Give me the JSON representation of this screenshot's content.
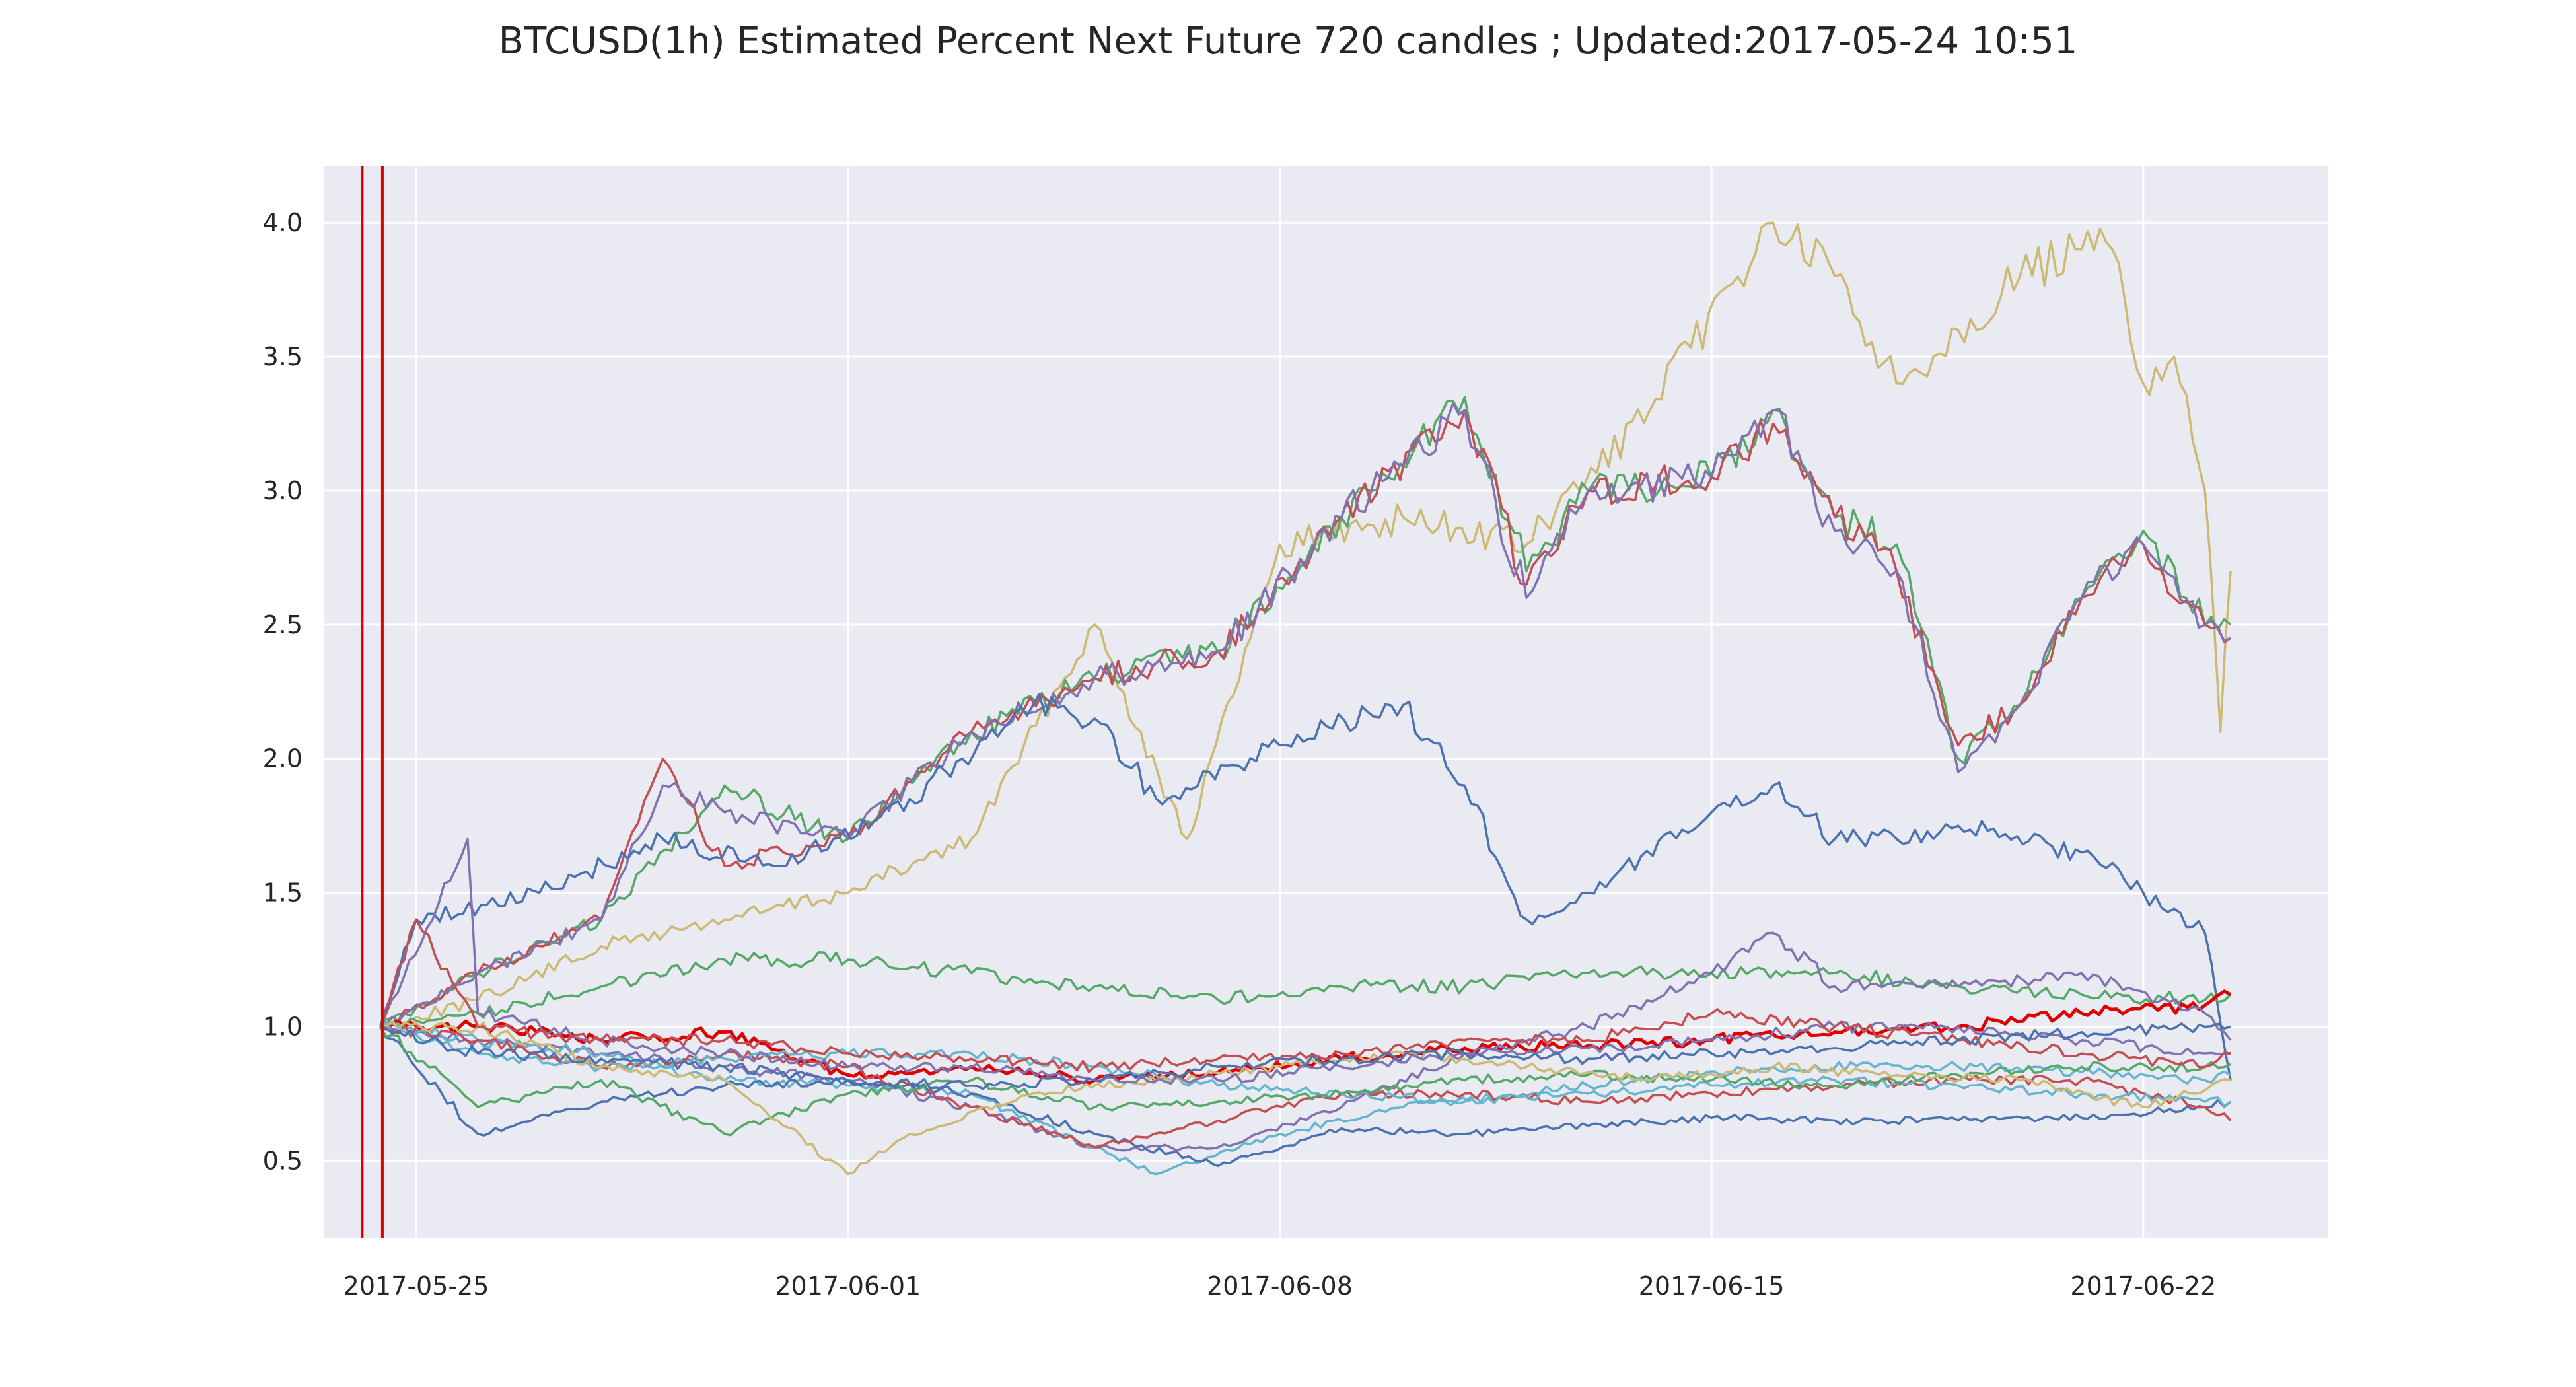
{
  "chart_data": {
    "type": "line",
    "title": "BTCUSD(1h) Estimated Percent Next Future 720 candles ; Updated:2017-05-24 10:51",
    "xlabel": "",
    "ylabel": "",
    "x_range": [
      "2017-05-23 12:00",
      "2017-06-25 00:00"
    ],
    "ylim": [
      0.21,
      4.21
    ],
    "x_ticks": [
      "2017-05-25",
      "2017-06-01",
      "2017-06-08",
      "2017-06-15",
      "2017-06-22"
    ],
    "y_ticks": [
      0.5,
      1.0,
      1.5,
      2.0,
      2.5,
      3.0,
      3.5,
      4.0
    ],
    "grid": true,
    "legend": "none",
    "background": "#eaeaf2",
    "vertical_markers": [
      {
        "x": "2017-05-24 03:00",
        "color": "#e00000"
      },
      {
        "x": "2017-05-24 10:51",
        "color": "#e00000"
      }
    ],
    "series": [
      {
        "color": "#ccb974",
        "x": [
          "2017-05-24 10:00",
          "2017-05-26",
          "2017-05-28",
          "2017-05-30",
          "2017-06-01",
          "2017-06-03",
          "2017-06-05",
          "2017-06-06 12:00",
          "2017-06-08",
          "2017-06-10",
          "2017-06-12",
          "2017-06-14",
          "2017-06-16",
          "2017-06-17",
          "2017-06-18",
          "2017-06-19",
          "2017-06-20",
          "2017-06-21",
          "2017-06-21 12:00",
          "2017-06-22",
          "2017-06-22 12:00",
          "2017-06-23",
          "2017-06-23 06:00",
          "2017-06-23 10:00"
        ],
        "values": [
          1.0,
          1.1,
          1.3,
          1.4,
          1.5,
          1.7,
          2.5,
          1.7,
          2.8,
          2.9,
          2.8,
          3.3,
          4.0,
          3.8,
          3.4,
          3.6,
          3.8,
          3.9,
          3.9,
          3.4,
          3.5,
          3.0,
          2.1,
          2.7
        ]
      },
      {
        "color": "#55a868",
        "x": [
          "2017-05-24 10:00",
          "2017-05-26",
          "2017-05-28",
          "2017-05-30",
          "2017-06-01",
          "2017-06-03",
          "2017-06-05",
          "2017-06-07",
          "2017-06-09",
          "2017-06-11",
          "2017-06-12",
          "2017-06-13",
          "2017-06-15",
          "2017-06-16",
          "2017-06-17",
          "2017-06-18",
          "2017-06-19",
          "2017-06-20",
          "2017-06-21",
          "2017-06-22",
          "2017-06-23",
          "2017-06-23 10:00"
        ],
        "values": [
          1.0,
          1.2,
          1.4,
          1.9,
          1.7,
          2.1,
          2.3,
          2.4,
          2.9,
          3.35,
          2.7,
          3.0,
          3.05,
          3.3,
          2.9,
          2.8,
          2.0,
          2.2,
          2.6,
          2.85,
          2.5,
          2.5
        ]
      },
      {
        "color": "#c44e52",
        "x": [
          "2017-05-24 10:00",
          "2017-05-26",
          "2017-05-28",
          "2017-05-29",
          "2017-05-30",
          "2017-06-01",
          "2017-06-03",
          "2017-06-05",
          "2017-06-07",
          "2017-06-09",
          "2017-06-11",
          "2017-06-12",
          "2017-06-13",
          "2017-06-15",
          "2017-06-16",
          "2017-06-17",
          "2017-06-18",
          "2017-06-19",
          "2017-06-20",
          "2017-06-21",
          "2017-06-22",
          "2017-06-23",
          "2017-06-23 10:00"
        ],
        "values": [
          1.0,
          1.2,
          1.4,
          2.0,
          1.6,
          1.7,
          2.1,
          2.3,
          2.4,
          2.9,
          3.3,
          2.65,
          3.0,
          3.05,
          3.25,
          2.9,
          2.7,
          2.05,
          2.2,
          2.6,
          2.8,
          2.5,
          2.45
        ]
      },
      {
        "color": "#8172b2",
        "x": [
          "2017-05-24 10:00",
          "2017-05-26",
          "2017-05-28",
          "2017-05-29",
          "2017-05-30",
          "2017-06-01",
          "2017-06-03",
          "2017-06-05",
          "2017-06-07",
          "2017-06-09",
          "2017-06-11",
          "2017-06-12",
          "2017-06-13",
          "2017-06-15",
          "2017-06-16",
          "2017-06-17",
          "2017-06-18",
          "2017-06-19",
          "2017-06-20",
          "2017-06-21",
          "2017-06-22",
          "2017-06-23",
          "2017-06-23 10:00"
        ],
        "values": [
          1.0,
          1.2,
          1.4,
          1.9,
          1.8,
          1.7,
          2.1,
          2.3,
          2.4,
          2.9,
          3.3,
          2.6,
          3.0,
          3.05,
          3.3,
          2.85,
          2.7,
          1.95,
          2.2,
          2.6,
          2.8,
          2.5,
          2.45
        ]
      },
      {
        "color": "#4c72b0",
        "x": [
          "2017-05-24 10:00",
          "2017-05-25",
          "2017-05-27",
          "2017-05-29",
          "2017-05-31",
          "2017-06-02",
          "2017-06-04",
          "2017-06-05",
          "2017-06-06",
          "2017-06-08",
          "2017-06-10",
          "2017-06-11",
          "2017-06-12",
          "2017-06-13",
          "2017-06-15",
          "2017-06-16",
          "2017-06-17",
          "2017-06-18",
          "2017-06-19",
          "2017-06-21",
          "2017-06-22",
          "2017-06-23",
          "2017-06-23 10:00"
        ],
        "values": [
          1.0,
          1.4,
          1.5,
          1.7,
          1.6,
          1.85,
          2.2,
          2.15,
          1.85,
          2.05,
          2.2,
          1.9,
          1.4,
          1.5,
          1.8,
          1.9,
          1.7,
          1.7,
          1.75,
          1.65,
          1.5,
          1.35,
          0.8
        ]
      },
      {
        "color": "#55a868",
        "x": [
          "2017-05-24 10:00",
          "2017-05-26",
          "2017-05-28",
          "2017-05-30",
          "2017-06-01",
          "2017-06-03",
          "2017-06-05",
          "2017-06-07",
          "2017-06-09",
          "2017-06-11",
          "2017-06-13",
          "2017-06-15",
          "2017-06-17",
          "2017-06-19",
          "2017-06-21",
          "2017-06-23",
          "2017-06-23 10:00"
        ],
        "values": [
          1.0,
          1.05,
          1.15,
          1.25,
          1.25,
          1.2,
          1.15,
          1.1,
          1.15,
          1.15,
          1.2,
          1.2,
          1.2,
          1.15,
          1.12,
          1.1,
          1.12
        ]
      },
      {
        "color": "#e00000",
        "x": [
          "2017-05-24 10:00",
          "2017-05-26",
          "2017-05-28",
          "2017-05-30",
          "2017-06-01",
          "2017-06-03",
          "2017-06-05",
          "2017-06-07",
          "2017-06-09",
          "2017-06-11",
          "2017-06-13",
          "2017-06-15",
          "2017-06-17",
          "2017-06-19",
          "2017-06-21",
          "2017-06-23",
          "2017-06-23 10:00"
        ],
        "values": [
          1.0,
          1.0,
          0.95,
          0.98,
          0.82,
          0.85,
          0.8,
          0.83,
          0.88,
          0.92,
          0.93,
          0.95,
          0.98,
          1.0,
          1.05,
          1.08,
          1.12
        ]
      },
      {
        "color": "#8172b2",
        "x": [
          "2017-05-24 10:00",
          "2017-05-26",
          "2017-05-28",
          "2017-05-30",
          "2017-06-01",
          "2017-06-03",
          "2017-06-05",
          "2017-06-07",
          "2017-06-09",
          "2017-06-11",
          "2017-06-13",
          "2017-06-15",
          "2017-06-16",
          "2017-06-17",
          "2017-06-19",
          "2017-06-21",
          "2017-06-23",
          "2017-06-23 10:00"
        ],
        "values": [
          1.0,
          0.95,
          0.9,
          0.85,
          0.8,
          0.7,
          0.55,
          0.55,
          0.7,
          0.9,
          1.0,
          1.2,
          1.35,
          1.15,
          1.15,
          1.2,
          1.05,
          0.95
        ]
      },
      {
        "color": "#64b5cd",
        "x": [
          "2017-05-24 10:00",
          "2017-05-26",
          "2017-05-28",
          "2017-05-30",
          "2017-06-01",
          "2017-06-03",
          "2017-06-05",
          "2017-06-06",
          "2017-06-08",
          "2017-06-10",
          "2017-06-13",
          "2017-06-16",
          "2017-06-19",
          "2017-06-21",
          "2017-06-23",
          "2017-06-23 10:00"
        ],
        "values": [
          1.0,
          0.95,
          0.9,
          0.8,
          0.78,
          0.75,
          0.55,
          0.45,
          0.6,
          0.7,
          0.78,
          0.85,
          0.85,
          0.83,
          0.8,
          0.82
        ]
      },
      {
        "color": "#4c72b0",
        "x": [
          "2017-05-24 10:00",
          "2017-05-26",
          "2017-05-28",
          "2017-05-30",
          "2017-06-01",
          "2017-06-03",
          "2017-06-05",
          "2017-06-07",
          "2017-06-09",
          "2017-06-11",
          "2017-06-13",
          "2017-06-15",
          "2017-06-17",
          "2017-06-19",
          "2017-06-21",
          "2017-06-23",
          "2017-06-23 10:00"
        ],
        "values": [
          1.0,
          0.6,
          0.72,
          0.78,
          0.8,
          0.75,
          0.6,
          0.48,
          0.62,
          0.6,
          0.63,
          0.66,
          0.65,
          0.65,
          0.66,
          0.7,
          0.72
        ]
      },
      {
        "color": "#c44e52",
        "x": [
          "2017-05-24 10:00",
          "2017-05-26",
          "2017-05-28",
          "2017-05-30",
          "2017-06-01",
          "2017-06-03",
          "2017-06-05",
          "2017-06-07",
          "2017-06-09",
          "2017-06-11",
          "2017-06-13",
          "2017-06-15",
          "2017-06-17",
          "2017-06-19",
          "2017-06-21",
          "2017-06-23",
          "2017-06-23 10:00"
        ],
        "values": [
          1.0,
          0.95,
          0.85,
          0.9,
          0.85,
          0.7,
          0.55,
          0.65,
          0.75,
          0.75,
          0.72,
          0.75,
          0.78,
          0.8,
          0.8,
          0.7,
          0.65
        ]
      },
      {
        "color": "#64b5cd",
        "x": [
          "2017-05-24 10:00",
          "2017-05-26",
          "2017-05-28",
          "2017-05-30",
          "2017-06-01",
          "2017-06-03",
          "2017-06-05",
          "2017-06-07",
          "2017-06-09",
          "2017-06-11",
          "2017-06-13",
          "2017-06-15",
          "2017-06-17",
          "2017-06-19",
          "2017-06-21",
          "2017-06-23",
          "2017-06-23 10:00"
        ],
        "values": [
          1.0,
          0.9,
          0.85,
          0.88,
          0.9,
          0.9,
          0.85,
          0.78,
          0.75,
          0.72,
          0.75,
          0.78,
          0.8,
          0.78,
          0.75,
          0.72,
          0.72
        ]
      },
      {
        "color": "#55a868",
        "x": [
          "2017-05-24 10:00",
          "2017-05-26",
          "2017-05-28",
          "2017-05-30",
          "2017-06-01",
          "2017-06-03",
          "2017-06-05",
          "2017-06-07",
          "2017-06-09",
          "2017-06-11",
          "2017-06-13",
          "2017-06-15",
          "2017-06-17",
          "2017-06-19",
          "2017-06-21",
          "2017-06-23",
          "2017-06-23 10:00"
        ],
        "values": [
          1.0,
          0.7,
          0.8,
          0.6,
          0.75,
          0.8,
          0.7,
          0.72,
          0.75,
          0.8,
          0.82,
          0.8,
          0.78,
          0.82,
          0.85,
          0.85,
          0.86
        ]
      },
      {
        "color": "#ccb974",
        "x": [
          "2017-05-24 10:00",
          "2017-05-26",
          "2017-05-28",
          "2017-05-30",
          "2017-06-01",
          "2017-06-02",
          "2017-06-04",
          "2017-06-06",
          "2017-06-08",
          "2017-06-10",
          "2017-06-12",
          "2017-06-14",
          "2017-06-16",
          "2017-06-18",
          "2017-06-20",
          "2017-06-22",
          "2017-06-23 10:00"
        ],
        "values": [
          1.0,
          1.0,
          0.85,
          0.8,
          0.45,
          0.6,
          0.75,
          0.8,
          0.85,
          0.9,
          0.85,
          0.8,
          0.85,
          0.82,
          0.8,
          0.7,
          0.8
        ]
      },
      {
        "color": "#8172b2",
        "x": [
          "2017-05-24 10:00",
          "2017-05-25 20:00",
          "2017-05-26",
          "2017-05-28",
          "2017-05-30",
          "2017-06-01",
          "2017-06-03",
          "2017-06-05",
          "2017-06-07",
          "2017-06-09",
          "2017-06-11",
          "2017-06-13",
          "2017-06-15",
          "2017-06-17",
          "2017-06-19",
          "2017-06-21",
          "2017-06-23",
          "2017-06-23 10:00"
        ],
        "values": [
          1.0,
          1.7,
          1.05,
          0.95,
          0.9,
          0.85,
          0.85,
          0.8,
          0.8,
          0.85,
          0.9,
          0.92,
          0.95,
          1.0,
          1.0,
          0.95,
          0.9,
          0.9
        ]
      },
      {
        "color": "#c44e52",
        "x": [
          "2017-05-24 10:00",
          "2017-05-25",
          "2017-05-26",
          "2017-05-28",
          "2017-05-30",
          "2017-06-01",
          "2017-06-03",
          "2017-06-05",
          "2017-06-07",
          "2017-06-09",
          "2017-06-11",
          "2017-06-13",
          "2017-06-15",
          "2017-06-17",
          "2017-06-19",
          "2017-06-21",
          "2017-06-23",
          "2017-06-23 10:00"
        ],
        "values": [
          1.0,
          1.4,
          1.0,
          0.95,
          0.95,
          0.9,
          0.88,
          0.85,
          0.88,
          0.9,
          0.95,
          0.95,
          1.05,
          1.0,
          0.95,
          0.9,
          0.85,
          0.9
        ]
      },
      {
        "color": "#4c72b0",
        "x": [
          "2017-05-24 10:00",
          "2017-05-26",
          "2017-05-28",
          "2017-05-30",
          "2017-06-01",
          "2017-06-03",
          "2017-06-05",
          "2017-06-07",
          "2017-06-09",
          "2017-06-11",
          "2017-06-13",
          "2017-06-15",
          "2017-06-17",
          "2017-06-19",
          "2017-06-21",
          "2017-06-23",
          "2017-06-23 10:00"
        ],
        "values": [
          1.0,
          0.9,
          0.88,
          0.85,
          0.8,
          0.78,
          0.8,
          0.85,
          0.88,
          0.9,
          0.88,
          0.9,
          0.92,
          0.95,
          0.98,
          1.0,
          1.0
        ]
      }
    ]
  }
}
